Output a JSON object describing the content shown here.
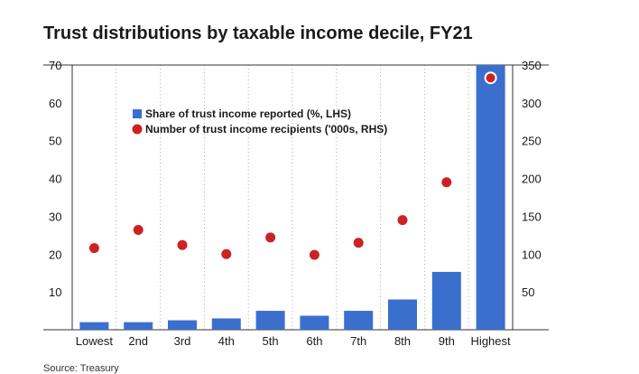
{
  "chart_data": {
    "type": "bar",
    "title": "Trust distributions by taxable income decile, FY21",
    "source": "Source: Treasury",
    "categories": [
      "Lowest",
      "2nd",
      "3rd",
      "4th",
      "5th",
      "6th",
      "7th",
      "8th",
      "9th",
      "Highest"
    ],
    "series": [
      {
        "name": "Share of trust income reported (%, LHS)",
        "kind": "bar",
        "axis": "left",
        "color": "#3a6fcd",
        "values": [
          2,
          2,
          2.5,
          3,
          5,
          3.7,
          5,
          8,
          15.3,
          72
        ]
      },
      {
        "name": "Number of trust income recipients ('000s, RHS)",
        "kind": "point",
        "axis": "right",
        "color": "#cc2222",
        "values": [
          108,
          132,
          112,
          100,
          122,
          99,
          115,
          145,
          195,
          333
        ]
      }
    ],
    "y_left": {
      "min": 0,
      "max": 70,
      "ticks": [
        10,
        20,
        30,
        40,
        50,
        60,
        70
      ]
    },
    "y_right": {
      "min": 0,
      "max": 350,
      "ticks": [
        50,
        100,
        150,
        200,
        250,
        300,
        350
      ]
    },
    "legend_position": "upper-left inside plot",
    "grid": "vertical dotted lines between categories"
  }
}
